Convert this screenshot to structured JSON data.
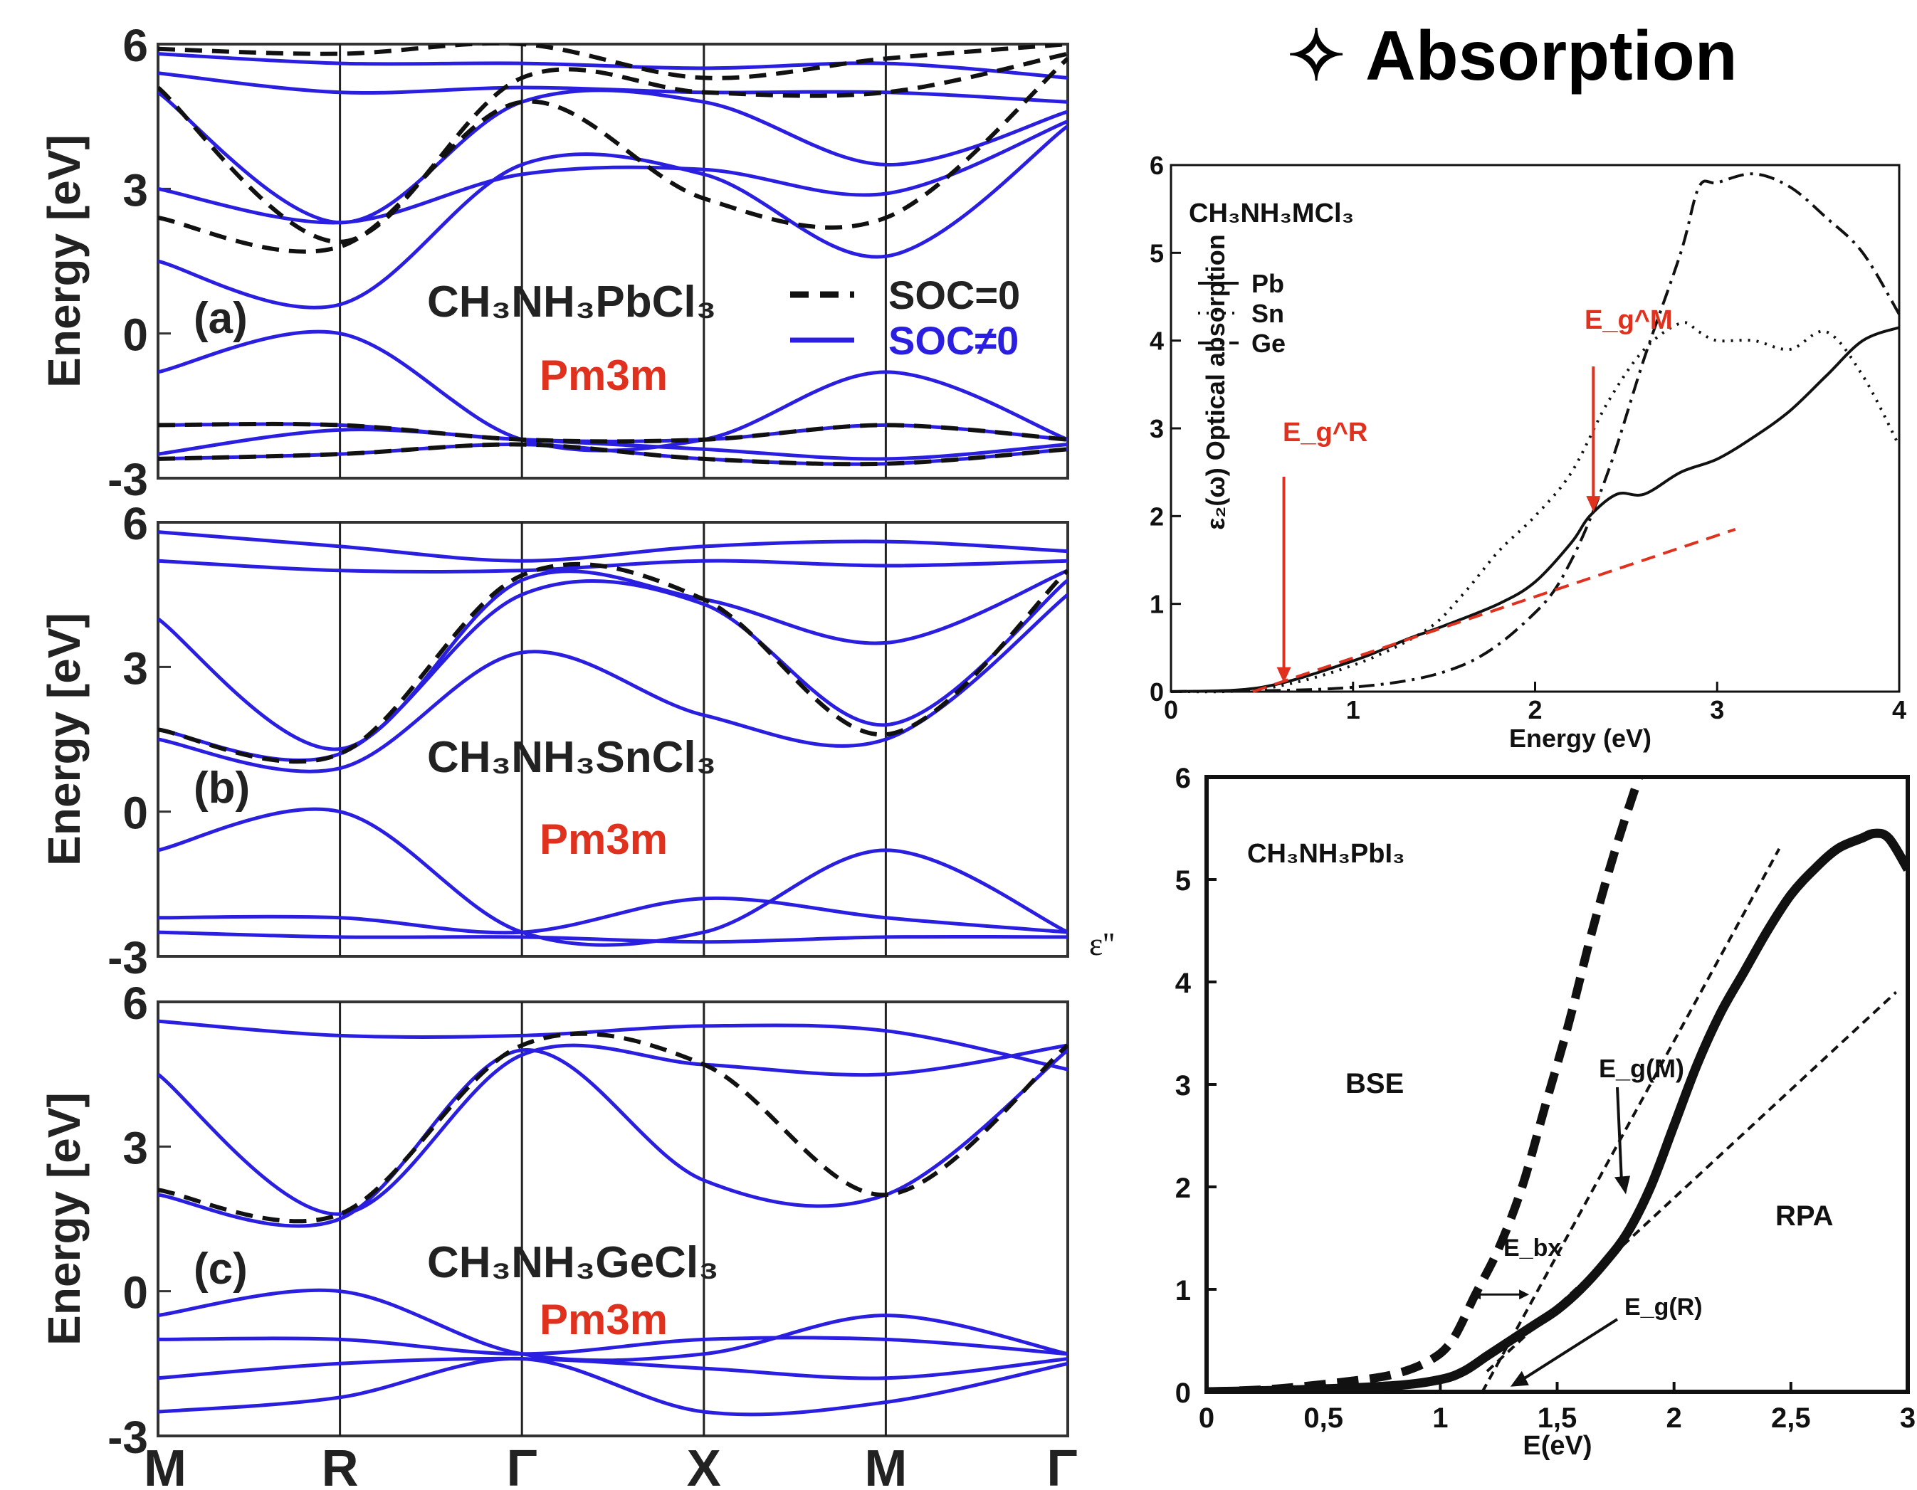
{
  "colors": {
    "band_blue": "#2a1fe0",
    "soc0_black": "#111111",
    "label_red": "#e0301e",
    "frame": "#333333",
    "grid_line": "#222222"
  },
  "header": {
    "symbol": "✧",
    "title": "Absorption"
  },
  "band_panels": {
    "ylabel": "Energy [eV]",
    "y_ticks": [
      "-3",
      "0",
      "3",
      "6"
    ],
    "kpoints": [
      "M",
      "R",
      "Γ",
      "X",
      "M",
      "Γ"
    ],
    "legend": {
      "soc0": "SOC=0",
      "soc1": "SOC≠0"
    },
    "panels": [
      {
        "tag": "(a)",
        "compound": "CH₃NH₃PbCl₃",
        "space_group": "Pm3m"
      },
      {
        "tag": "(b)",
        "compound": "CH₃NH₃SnCl₃",
        "space_group": "Pm3m"
      },
      {
        "tag": "(c)",
        "compound": "CH₃NH₃GeCl₃",
        "space_group": "Pm3m"
      }
    ]
  },
  "absorption_mcl": {
    "label": "CH₃NH₃MCl₃",
    "ylabel": "ε₂(ω) Optical absorption",
    "xlabel": "Energy (eV)",
    "x_ticks": [
      "0",
      "1",
      "2",
      "3",
      "4"
    ],
    "y_ticks": [
      "0",
      "1",
      "2",
      "3",
      "4",
      "5",
      "6"
    ],
    "legend": [
      "Pb",
      "Sn",
      "Ge"
    ],
    "arrow_r": "E_g^R",
    "arrow_m": "E_g^M"
  },
  "absorption_pbi3": {
    "label": "CH₃NH₃PbI₃",
    "ylabel": "ε''",
    "xlabel": "E(eV)",
    "x_ticks": [
      "0",
      "0,5",
      "1",
      "1,5",
      "2",
      "2,5",
      "3"
    ],
    "y_ticks": [
      "0",
      "1",
      "2",
      "3",
      "4",
      "5",
      "6"
    ],
    "bse": "BSE",
    "rpa": "RPA",
    "egm": "E_g(M)",
    "egr": "E_g(R)",
    "ebx": "E_bx"
  },
  "chart_data": [
    {
      "type": "line",
      "title": "(a) CH₃NH₃PbCl₃ Pm3m",
      "ylabel": "Energy [eV]",
      "ylim": [
        -3,
        6
      ],
      "x_ticks": [
        "M",
        "R",
        "Γ",
        "X",
        "M",
        "Γ"
      ],
      "series": [
        {
          "name": "SOC≠0",
          "style": "solid-blue",
          "bands": [
            [
              -0.8,
              0,
              -2.2,
              -2.2,
              -0.8,
              -2.2
            ],
            [
              -1.9,
              -1.9,
              -2.2,
              -2.2,
              -1.9,
              -2.2
            ],
            [
              -2.5,
              -2.0,
              -2.2,
              -2.4,
              -2.6,
              -2.3
            ],
            [
              -2.6,
              -2.5,
              -2.3,
              -2.6,
              -2.7,
              -2.4
            ],
            [
              1.5,
              0.6,
              3.5,
              3.3,
              1.6,
              4.3
            ],
            [
              3.0,
              2.3,
              3.3,
              3.4,
              2.9,
              4.4
            ],
            [
              5.0,
              2.3,
              4.8,
              4.8,
              3.5,
              4.6
            ],
            [
              5.4,
              5.0,
              5.1,
              5.0,
              5.0,
              4.8
            ],
            [
              5.8,
              5.6,
              5.6,
              5.5,
              5.6,
              5.3
            ]
          ]
        },
        {
          "name": "SOC=0",
          "style": "dashed-black",
          "bands": [
            [
              2.4,
              1.8,
              4.8,
              2.8,
              2.4,
              5.7
            ],
            [
              5.1,
              1.9,
              5.3,
              5.0,
              5.0,
              5.8
            ],
            [
              5.9,
              5.8,
              6.0,
              5.3,
              5.7,
              6.0
            ],
            [
              -1.9,
              -1.9,
              -2.2,
              -2.2,
              -1.9,
              -2.2
            ],
            [
              -2.6,
              -2.5,
              -2.3,
              -2.6,
              -2.7,
              -2.4
            ]
          ]
        }
      ]
    },
    {
      "type": "line",
      "title": "(b) CH₃NH₃SnCl₃ Pm3m",
      "ylabel": "Energy [eV]",
      "ylim": [
        -3,
        6
      ],
      "x_ticks": [
        "M",
        "R",
        "Γ",
        "X",
        "M",
        "Γ"
      ],
      "series": [
        {
          "name": "SOC≠0",
          "style": "solid-blue",
          "bands": [
            [
              -0.8,
              0,
              -2.5,
              -2.5,
              -0.8,
              -2.5
            ],
            [
              -2.2,
              -2.2,
              -2.5,
              -1.8,
              -2.2,
              -2.5
            ],
            [
              -2.5,
              -2.6,
              -2.6,
              -2.7,
              -2.6,
              -2.6
            ],
            [
              1.5,
              0.9,
              3.3,
              2.0,
              1.5,
              4.5
            ],
            [
              1.7,
              1.2,
              4.5,
              4.3,
              1.8,
              4.8
            ],
            [
              4.0,
              1.3,
              4.8,
              4.4,
              3.5,
              5.0
            ],
            [
              5.2,
              5.0,
              5.0,
              5.2,
              5.1,
              5.2
            ],
            [
              5.8,
              5.5,
              5.2,
              5.5,
              5.6,
              5.4
            ]
          ]
        },
        {
          "name": "SOC=0",
          "style": "dashed-black",
          "bands": [
            [
              1.7,
              1.2,
              4.9,
              4.4,
              1.6,
              5.0
            ]
          ]
        }
      ]
    },
    {
      "type": "line",
      "title": "(c) CH₃NH₃GeCl₃ Pm3m",
      "ylabel": "Energy [eV]",
      "ylim": [
        -3,
        6
      ],
      "x_ticks": [
        "M",
        "R",
        "Γ",
        "X",
        "M",
        "Γ"
      ],
      "series": [
        {
          "name": "SOC≠0",
          "style": "solid-blue",
          "bands": [
            [
              -0.5,
              0,
              -1.3,
              -1.3,
              -0.5,
              -1.3
            ],
            [
              -1.0,
              -1.0,
              -1.3,
              -1.0,
              -1.0,
              -1.3
            ],
            [
              -1.8,
              -1.5,
              -1.4,
              -1.6,
              -1.8,
              -1.4
            ],
            [
              -2.5,
              -2.2,
              -1.4,
              -2.5,
              -2.3,
              -1.5
            ],
            [
              2.0,
              1.5,
              5.0,
              2.3,
              2.0,
              5.0
            ],
            [
              4.5,
              1.6,
              4.9,
              4.7,
              4.5,
              5.1
            ],
            [
              5.6,
              5.3,
              5.3,
              5.5,
              5.4,
              4.6
            ]
          ]
        },
        {
          "name": "SOC=0",
          "style": "dashed-black",
          "bands": [
            [
              2.1,
              1.6,
              5.1,
              4.7,
              2.0,
              5.1
            ]
          ]
        }
      ]
    },
    {
      "type": "line",
      "title": "CH₃NH₃MCl₃",
      "xlabel": "Energy (eV)",
      "ylabel": "ε₂(ω) Optical absorption",
      "xlim": [
        0,
        4
      ],
      "ylim": [
        0,
        6
      ],
      "series": [
        {
          "name": "Pb",
          "style": "solid",
          "x": [
            0,
            0.5,
            1.0,
            1.3,
            1.5,
            1.8,
            2.0,
            2.2,
            2.3,
            2.45,
            2.6,
            2.8,
            3.0,
            3.2,
            3.4,
            3.6,
            3.8,
            4.0
          ],
          "y": [
            0,
            0.05,
            0.35,
            0.6,
            0.75,
            1.0,
            1.25,
            1.7,
            2.0,
            2.25,
            2.25,
            2.5,
            2.65,
            2.9,
            3.2,
            3.6,
            4.0,
            4.15
          ]
        },
        {
          "name": "Sn",
          "style": "dotted",
          "x": [
            0,
            0.5,
            1.0,
            1.4,
            1.6,
            1.8,
            2.0,
            2.2,
            2.4,
            2.6,
            2.8,
            2.9,
            3.0,
            3.2,
            3.4,
            3.6,
            3.8,
            4.0
          ],
          "y": [
            0,
            0.03,
            0.3,
            0.7,
            1.1,
            1.6,
            2.0,
            2.5,
            3.3,
            3.9,
            4.2,
            4.1,
            4.0,
            4.0,
            3.9,
            4.1,
            3.6,
            2.8
          ]
        },
        {
          "name": "Ge",
          "style": "dashdot",
          "x": [
            0,
            1.0,
            1.6,
            2.0,
            2.2,
            2.4,
            2.6,
            2.8,
            2.9,
            3.0,
            3.2,
            3.4,
            3.6,
            3.8,
            4.0
          ],
          "y": [
            0,
            0.05,
            0.3,
            0.9,
            1.5,
            2.5,
            3.8,
            5.0,
            5.75,
            5.8,
            5.9,
            5.75,
            5.4,
            5.0,
            4.3
          ]
        },
        {
          "name": "",
          "style": "red-dashed-fit",
          "x": [
            0.45,
            3.1
          ],
          "y": [
            0,
            1.85
          ]
        }
      ],
      "annotations": [
        {
          "text": "E_g^R",
          "x": 0.62
        },
        {
          "text": "E_g^M",
          "x": 2.32
        }
      ]
    },
    {
      "type": "line",
      "title": "CH₃NH₃PbI₃",
      "xlabel": "E(eV)",
      "ylabel": "ε''",
      "xlim": [
        0,
        3
      ],
      "ylim": [
        0,
        6
      ],
      "series": [
        {
          "name": "BSE",
          "style": "thick-dashed",
          "x": [
            0,
            0.3,
            0.6,
            0.8,
            0.95,
            1.05,
            1.15,
            1.25,
            1.35,
            1.45,
            1.55,
            1.65,
            1.75,
            1.85
          ],
          "y": [
            0,
            0.03,
            0.1,
            0.17,
            0.3,
            0.5,
            0.95,
            1.4,
            2.0,
            2.8,
            3.6,
            4.5,
            5.3,
            6.0
          ]
        },
        {
          "name": "RPA",
          "style": "thick-solid",
          "x": [
            0,
            0.4,
            0.8,
            1.0,
            1.1,
            1.2,
            1.3,
            1.4,
            1.5,
            1.6,
            1.7,
            1.8,
            1.9,
            2.0,
            2.1,
            2.2,
            2.3,
            2.4,
            2.5,
            2.6,
            2.7,
            2.8,
            2.86,
            2.92,
            3.0
          ],
          "y": [
            0,
            0.02,
            0.06,
            0.12,
            0.2,
            0.35,
            0.5,
            0.65,
            0.8,
            1.0,
            1.25,
            1.55,
            2.0,
            2.6,
            3.2,
            3.7,
            4.1,
            4.5,
            4.85,
            5.1,
            5.3,
            5.4,
            5.45,
            5.4,
            5.1
          ]
        },
        {
          "name": "",
          "style": "fit-dashed",
          "x": [
            1.18,
            2.45
          ],
          "y": [
            0,
            5.3
          ]
        },
        {
          "name": "",
          "style": "fit-dashed",
          "x": [
            1.2,
            2.95
          ],
          "y": [
            0.2,
            3.9
          ]
        }
      ],
      "annotations": [
        {
          "text": "E_g(M)",
          "x": 1.8
        },
        {
          "text": "E_g(R)",
          "x": 1.3
        },
        {
          "text": "E_bx",
          "x": 1.2
        }
      ]
    }
  ]
}
